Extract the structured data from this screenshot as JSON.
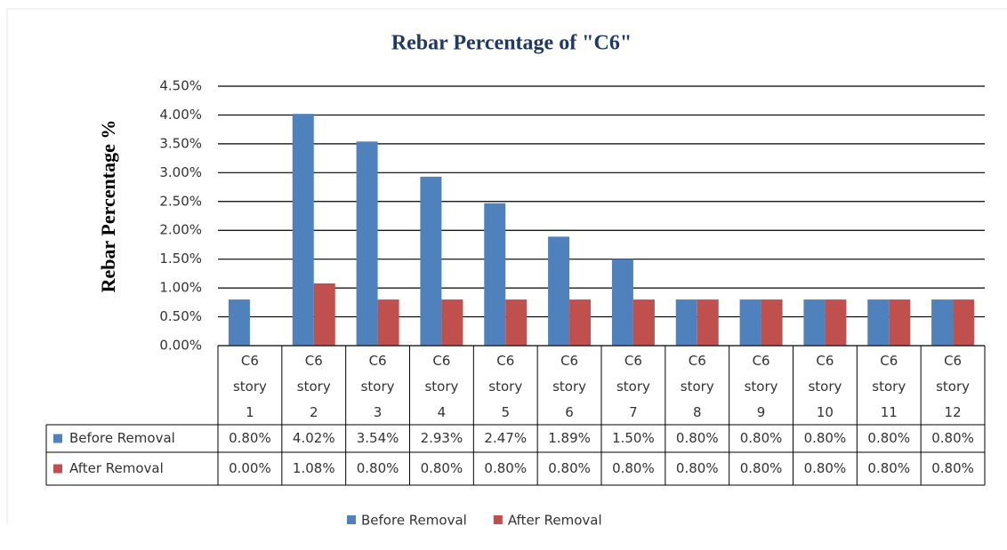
{
  "chart_data": {
    "type": "bar",
    "title": "Rebar Percentage of \"C6\"",
    "y_label": "Rebar Percentage %",
    "categories": [
      "C6 story 1",
      "C6 story 2",
      "C6 story 3",
      "C6 story 4",
      "C6 story 5",
      "C6 story 6",
      "C6 story 7",
      "C6 story 8",
      "C6 story 9",
      "C6 story 10",
      "C6 story 11",
      "C6 story 12"
    ],
    "series": [
      {
        "name": "Before Removal",
        "color": "#4f81bd",
        "values": [
          0.8,
          4.02,
          3.54,
          2.93,
          2.47,
          1.89,
          1.5,
          0.8,
          0.8,
          0.8,
          0.8,
          0.8
        ],
        "value_labels": [
          "0.80%",
          "4.02%",
          "3.54%",
          "2.93%",
          "2.47%",
          "1.89%",
          "1.50%",
          "0.80%",
          "0.80%",
          "0.80%",
          "0.80%",
          "0.80%"
        ]
      },
      {
        "name": "After Removal",
        "color": "#c0504d",
        "values": [
          0,
          1.08,
          0.8,
          0.8,
          0.8,
          0.8,
          0.8,
          0.8,
          0.8,
          0.8,
          0.8,
          0.8
        ],
        "value_labels": [
          "0.00%",
          "1.08%",
          "0.80%",
          "0.80%",
          "0.80%",
          "0.80%",
          "0.80%",
          "0.80%",
          "0.80%",
          "0.80%",
          "0.80%",
          "0.80%"
        ]
      }
    ],
    "ylim": [
      0,
      4.5
    ],
    "yticks": [
      {
        "value": 0,
        "label": "0.00%"
      },
      {
        "value": 0.5,
        "label": "0.50%"
      },
      {
        "value": 1,
        "label": "1.00%"
      },
      {
        "value": 1.5,
        "label": "1.50%"
      },
      {
        "value": 2,
        "label": "2.00%"
      },
      {
        "value": 2.5,
        "label": "2.50%"
      },
      {
        "value": 3,
        "label": "3.00%"
      },
      {
        "value": 3.5,
        "label": "3.50%"
      },
      {
        "value": 4,
        "label": "4.00%"
      },
      {
        "value": 4.5,
        "label": "4.50%"
      }
    ],
    "grid": true,
    "legend": "bottom"
  }
}
